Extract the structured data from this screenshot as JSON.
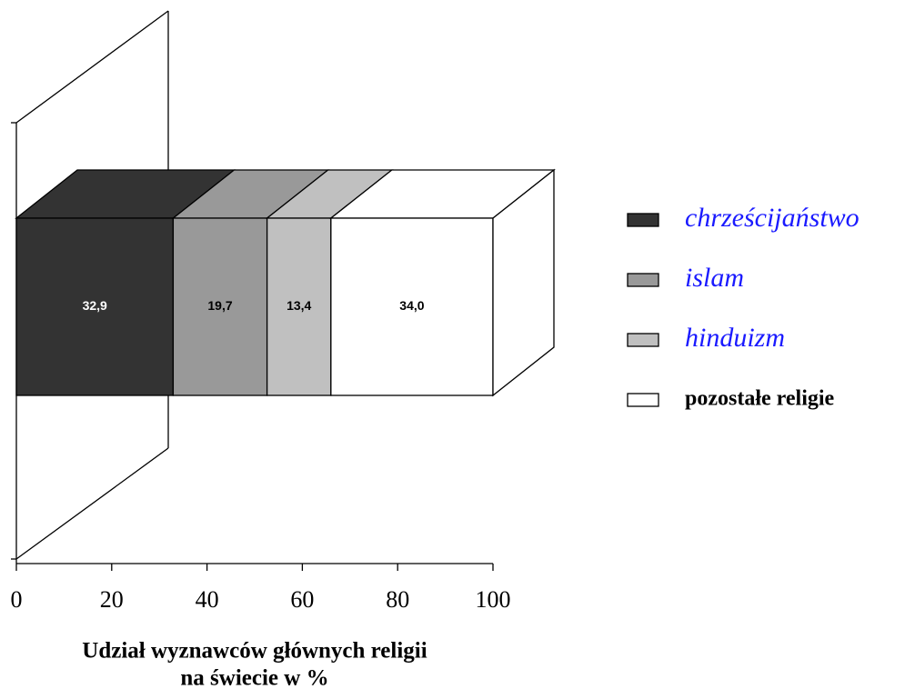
{
  "chart_data": {
    "type": "bar3d_stacked_horizontal",
    "series": [
      {
        "name": "chrześcijaństwo",
        "color": "#333333",
        "values": [
          32.9
        ],
        "value_labels": [
          "32,9"
        ]
      },
      {
        "name": "islam",
        "color": "#999999",
        "values": [
          19.7
        ],
        "value_labels": [
          "19,7"
        ]
      },
      {
        "name": "hinduizm",
        "color": "#c0c0c0",
        "values": [
          13.4
        ],
        "value_labels": [
          "13,4"
        ]
      },
      {
        "name": "pozostałe religie",
        "color": "#ffffff",
        "values": [
          34.0
        ],
        "value_labels": [
          "34,0"
        ]
      }
    ],
    "xlim": [
      0,
      100
    ],
    "xticks": [
      0,
      20,
      40,
      60,
      80,
      100
    ],
    "xlabel": [
      "Udział wyznawców głównych religii",
      "na świecie w %"
    ]
  }
}
